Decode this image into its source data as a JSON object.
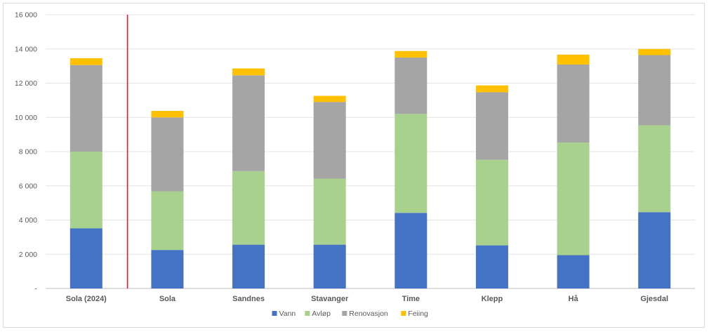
{
  "chart_data": {
    "type": "bar",
    "stacked": true,
    "categories": [
      "Sola (2024)",
      "Sola",
      "Sandnes",
      "Stavanger",
      "Time",
      "Klepp",
      "Hå",
      "Gjesdal"
    ],
    "series": [
      {
        "name": "Vann",
        "color": "#4472c4",
        "values": [
          3520,
          2250,
          2560,
          2560,
          4420,
          2520,
          1950,
          4460
        ]
      },
      {
        "name": "Avløp",
        "color": "#a9d18e",
        "values": [
          4480,
          3430,
          4300,
          3860,
          5780,
          5000,
          6580,
          5080
        ]
      },
      {
        "name": "Renovasjon",
        "color": "#a5a5a5",
        "values": [
          5060,
          4320,
          5600,
          4480,
          3300,
          3950,
          4560,
          4100
        ]
      },
      {
        "name": "Feiing",
        "color": "#ffc000",
        "values": [
          400,
          380,
          400,
          360,
          380,
          400,
          580,
          360
        ]
      }
    ],
    "ylim": [
      0,
      16000
    ],
    "yticks": [
      "-",
      "2 000",
      "4 000",
      "6 000",
      "8 000",
      "10 000",
      "12 000",
      "14 000",
      "16 000"
    ],
    "grid": true,
    "legend": "bottom",
    "separator_color": "#e0202a",
    "title": "",
    "xlabel": "",
    "ylabel": ""
  }
}
